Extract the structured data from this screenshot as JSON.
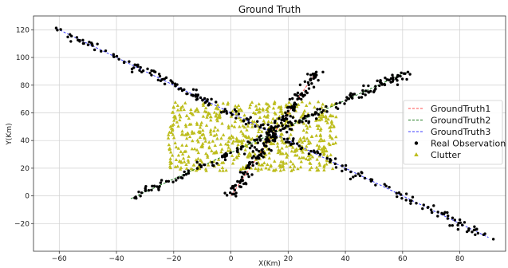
{
  "chart_data": {
    "type": "scatter",
    "title": "Ground Truth",
    "xlabel": "X(Km)",
    "ylabel": "Y(Km)",
    "xlim": [
      -69,
      96
    ],
    "ylim": [
      -40,
      130
    ],
    "xticks": [
      -60,
      -40,
      -20,
      0,
      20,
      40,
      60,
      80
    ],
    "yticks": [
      -20,
      0,
      20,
      40,
      60,
      80,
      100,
      120
    ],
    "grid": true,
    "legend_position": "right",
    "legend": [
      "GroundTruth1",
      "GroundTruth2",
      "GroundTruth3",
      "Real Observation",
      "Clutter"
    ],
    "colors": {
      "GroundTruth1": "#ff4d4d",
      "GroundTruth2": "#1f7a1f",
      "GroundTruth3": "#3a3aff",
      "Real Observation": "#000000",
      "Clutter": "#bdbd1c"
    },
    "tracks": [
      {
        "name": "GroundTruth1",
        "x": [
          0,
          30
        ],
        "y": [
          0,
          90
        ]
      },
      {
        "name": "GroundTruth2",
        "x": [
          -35,
          62
        ],
        "y": [
          -2,
          90
        ]
      },
      {
        "name": "GroundTruth3",
        "x": [
          -61,
          90
        ],
        "y": [
          121,
          -30
        ]
      }
    ],
    "clutter_region": {
      "x": [
        -22,
        37
      ],
      "y": [
        18,
        68
      ]
    }
  }
}
